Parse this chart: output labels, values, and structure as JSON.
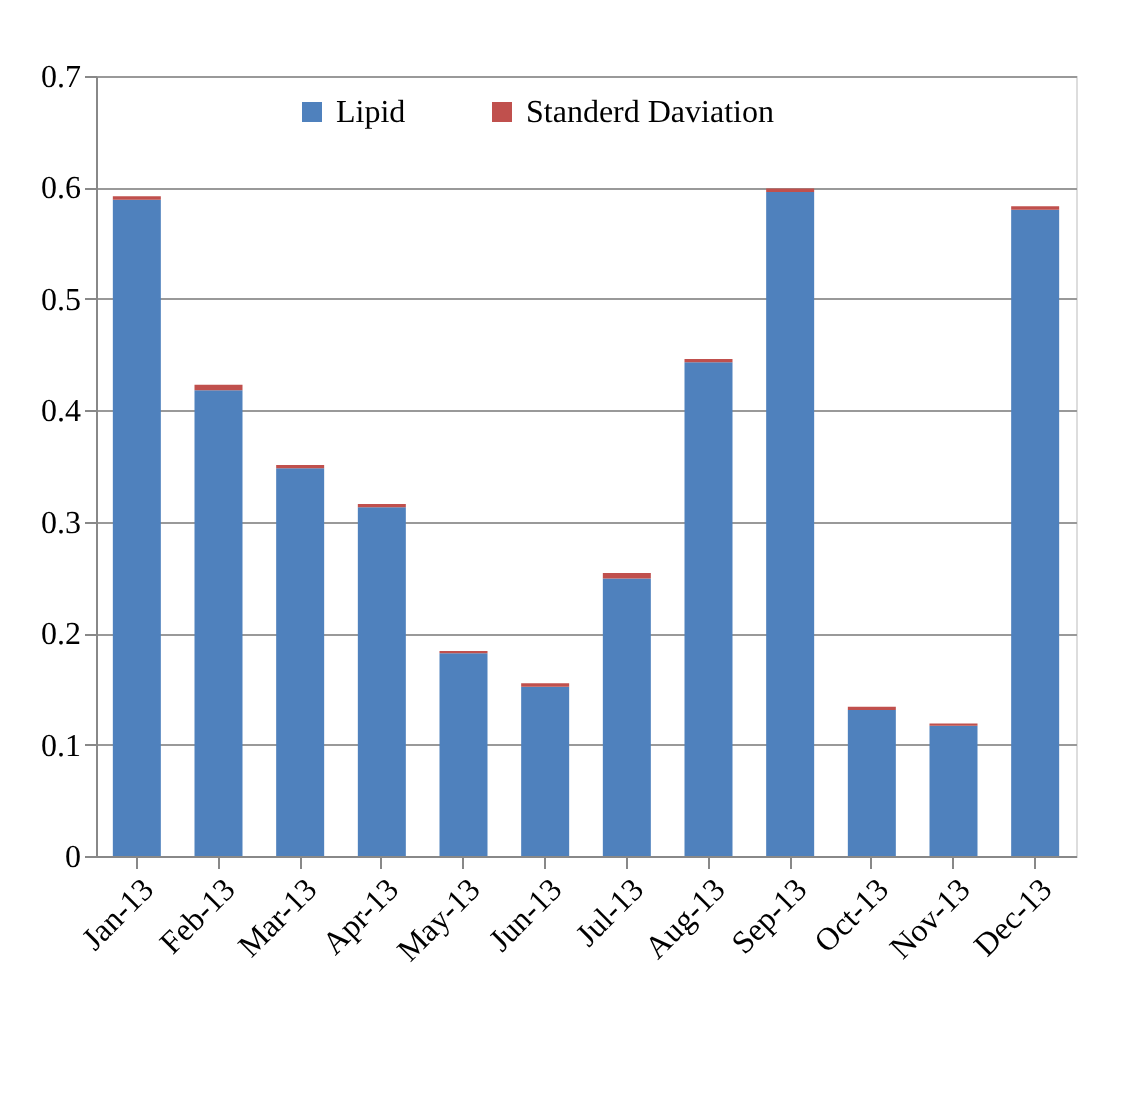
{
  "chart_data": {
    "type": "bar",
    "stacked": true,
    "categories": [
      "Jan-13",
      "Feb-13",
      "Mar-13",
      "Apr-13",
      "May-13",
      "Jun-13",
      "Jul-13",
      "Aug-13",
      "Sep-13",
      "Oct-13",
      "Nov-13",
      "Dec-13"
    ],
    "series": [
      {
        "name": "Lipid",
        "color": "#4f81bd",
        "values": [
          0.589,
          0.418,
          0.348,
          0.313,
          0.182,
          0.152,
          0.249,
          0.443,
          0.596,
          0.131,
          0.117,
          0.58
        ]
      },
      {
        "name": "Standerd Daviation",
        "color": "#c0504d",
        "values": [
          0.003,
          0.005,
          0.003,
          0.003,
          0.002,
          0.003,
          0.005,
          0.003,
          0.003,
          0.003,
          0.002,
          0.003
        ]
      }
    ],
    "ylim": [
      0,
      0.7
    ],
    "yticks": [
      0,
      0.1,
      0.2,
      0.3,
      0.4,
      0.5,
      0.6,
      0.7
    ],
    "grid": "y",
    "legend": "top"
  }
}
